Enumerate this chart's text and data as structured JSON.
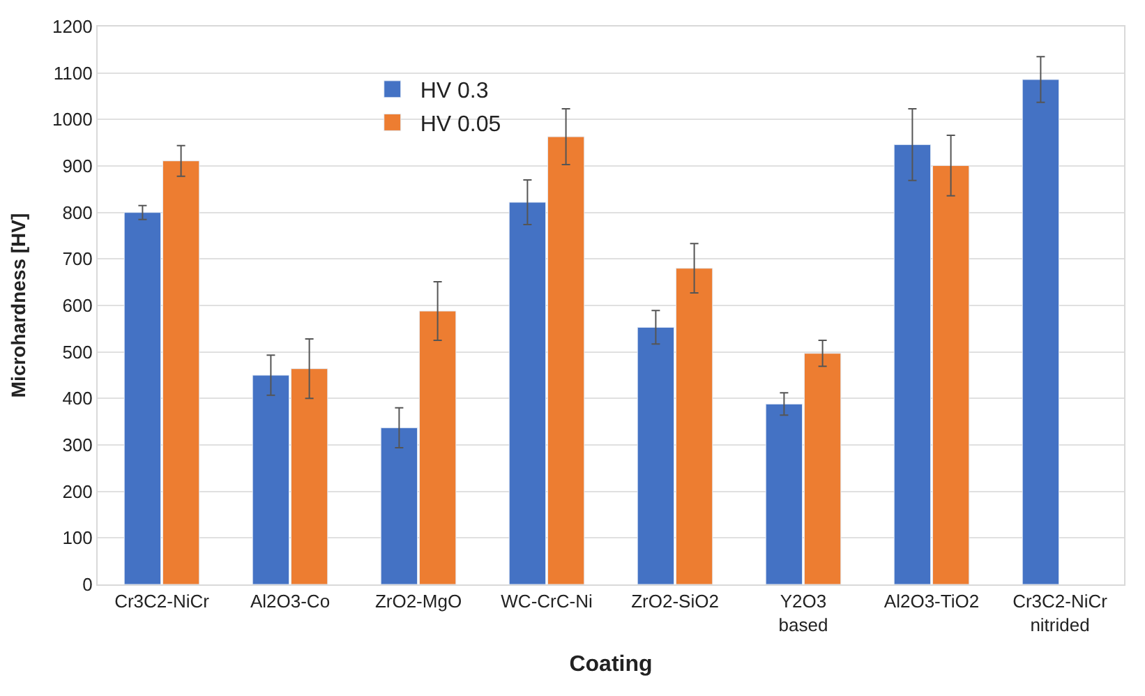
{
  "chart_data": {
    "type": "bar",
    "xlabel": "Coating",
    "ylabel": "Microhardness [HV]",
    "categories": [
      "Cr3C2-NiCr",
      "Al2O3-Co",
      "ZrO2-MgO",
      "WC-CrC-Ni",
      "ZrO2-SiO2",
      "Y2O3\nbased",
      "Al2O3-TiO2",
      "Cr3C2-NiCr\nnitrided"
    ],
    "series": [
      {
        "name": "HV 0.3",
        "color": "#4472c4",
        "values": [
          800,
          450,
          337,
          822,
          553,
          388,
          946,
          1086
        ],
        "errors": [
          15,
          43,
          43,
          48,
          36,
          24,
          77,
          49
        ]
      },
      {
        "name": "HV 0.05",
        "color": "#ed7d31",
        "values": [
          911,
          464,
          588,
          963,
          680,
          497,
          901,
          null
        ],
        "errors": [
          33,
          64,
          63,
          60,
          53,
          28,
          65,
          null
        ]
      }
    ],
    "ylim": [
      0,
      1200
    ],
    "yticks": [
      0,
      100,
      200,
      300,
      400,
      500,
      600,
      700,
      800,
      900,
      1000,
      1100,
      1200
    ],
    "grid": "y",
    "legend": "top left"
  }
}
